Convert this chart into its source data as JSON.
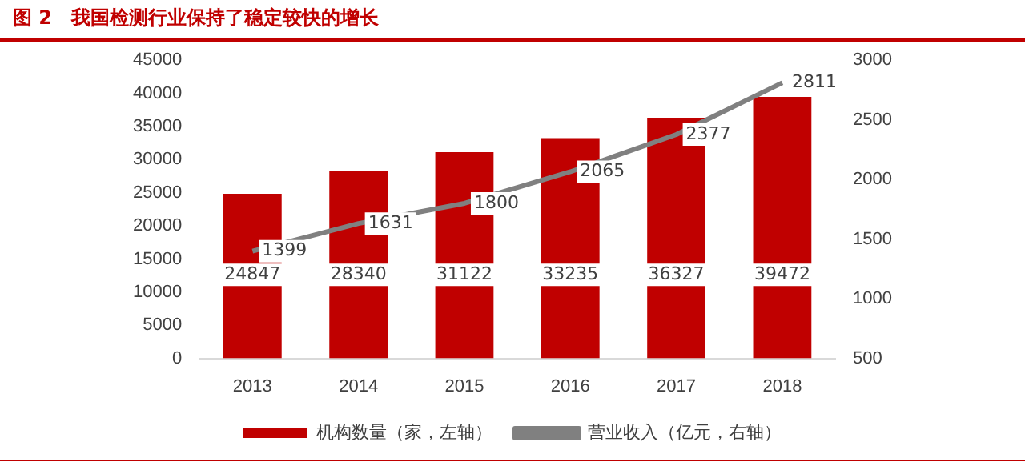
{
  "chart_data": {
    "type": "bar",
    "title": "图 2　我国检测行业保持了稳定较快的增长",
    "categories": [
      "2013",
      "2014",
      "2015",
      "2016",
      "2017",
      "2018"
    ],
    "series": [
      {
        "name": "机构数量（家，左轴）",
        "color": "#c00000",
        "values": [
          24847,
          28340,
          31122,
          33235,
          36327,
          39472
        ]
      },
      {
        "name": "营业收入（亿元，右轴）",
        "type": "line",
        "axis": "y2",
        "color": "#808080",
        "values": [
          1399,
          1631,
          1800,
          2065,
          2377,
          2811
        ]
      }
    ],
    "ylim": [
      0,
      45000
    ],
    "yticks": [
      0,
      5000,
      10000,
      15000,
      20000,
      25000,
      30000,
      35000,
      40000,
      45000
    ],
    "y2lim": [
      500,
      3000
    ],
    "y2ticks": [
      500,
      1000,
      1500,
      2000,
      2500,
      3000
    ],
    "grid": false,
    "legend": "bottom",
    "marker": "none",
    "data_labels": true
  }
}
